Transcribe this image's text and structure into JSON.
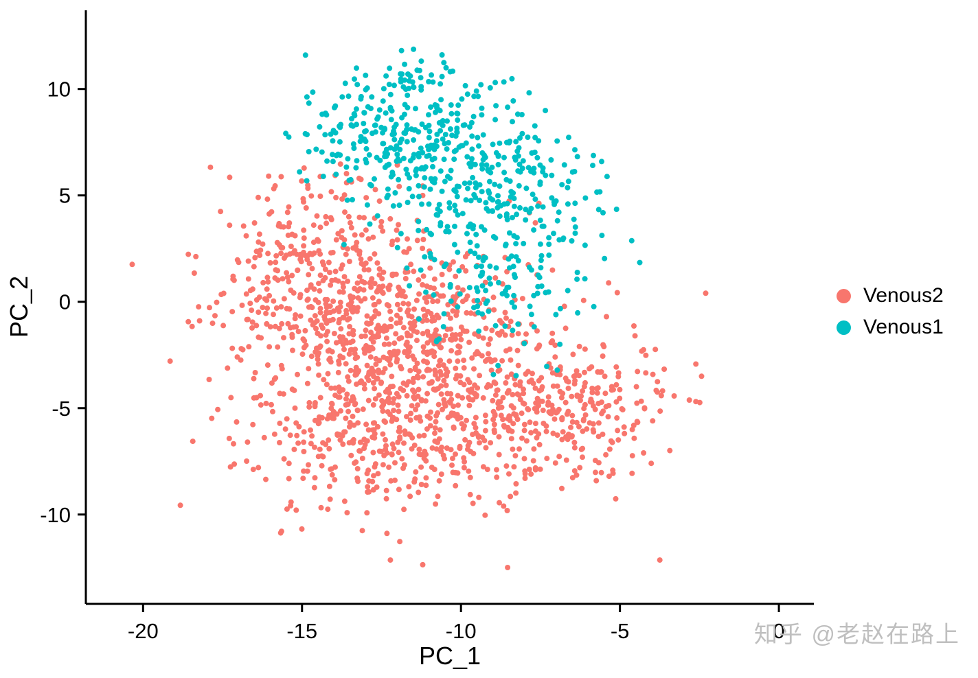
{
  "chart_data": {
    "type": "scatter",
    "title": "",
    "xlabel": "PC_1",
    "ylabel": "PC_2",
    "xlim": [
      -21.8,
      1.1
    ],
    "ylim": [
      -14.2,
      13.7
    ],
    "x_ticks": [
      -20,
      -15,
      -10,
      -5,
      0
    ],
    "y_ticks": [
      -10,
      -5,
      0,
      5,
      10
    ],
    "grid": false,
    "legend_position": "right",
    "point_radius": 4,
    "seed": 42,
    "series": [
      {
        "name": "Venous2",
        "color": "#F8766D",
        "n_points": 1600,
        "clip": {
          "x": [
            -21.3,
            -2.3
          ],
          "y": [
            -13.3,
            7.6
          ]
        },
        "clusters": [
          {
            "cx": -14.5,
            "cy": 1.5,
            "sx": 1.8,
            "sy": 2.2,
            "n": 320
          },
          {
            "cx": -12.0,
            "cy": -1.5,
            "sx": 1.8,
            "sy": 1.8,
            "n": 380
          },
          {
            "cx": -12.5,
            "cy": -6.0,
            "sx": 2.0,
            "sy": 2.0,
            "n": 350
          },
          {
            "cx": -7.8,
            "cy": -5.0,
            "sx": 1.8,
            "sy": 1.8,
            "n": 280
          },
          {
            "cx": -12.0,
            "cy": -2.5,
            "sx": 3.8,
            "sy": 4.2,
            "n": 200
          },
          {
            "cx": -5.5,
            "cy": -5.3,
            "sx": 1.3,
            "sy": 1.5,
            "n": 70
          }
        ]
      },
      {
        "name": "Venous1",
        "color": "#00BFC4",
        "n_points": 650,
        "clip": {
          "x": [
            -16.0,
            -4.3
          ],
          "y": [
            -3.6,
            12.8
          ]
        },
        "clusters": [
          {
            "cx": -11.8,
            "cy": 8.3,
            "sx": 1.7,
            "sy": 1.6,
            "n": 280
          },
          {
            "cx": -9.3,
            "cy": 5.2,
            "sx": 1.9,
            "sy": 1.8,
            "n": 260
          },
          {
            "cx": -8.8,
            "cy": 0.8,
            "sx": 1.3,
            "sy": 1.8,
            "n": 110
          }
        ]
      }
    ]
  },
  "legend": {
    "items": [
      {
        "label": "Venous2",
        "color": "#F8766D"
      },
      {
        "label": "Venous1",
        "color": "#00BFC4"
      }
    ]
  },
  "watermark": "知乎 @老赵在路上"
}
